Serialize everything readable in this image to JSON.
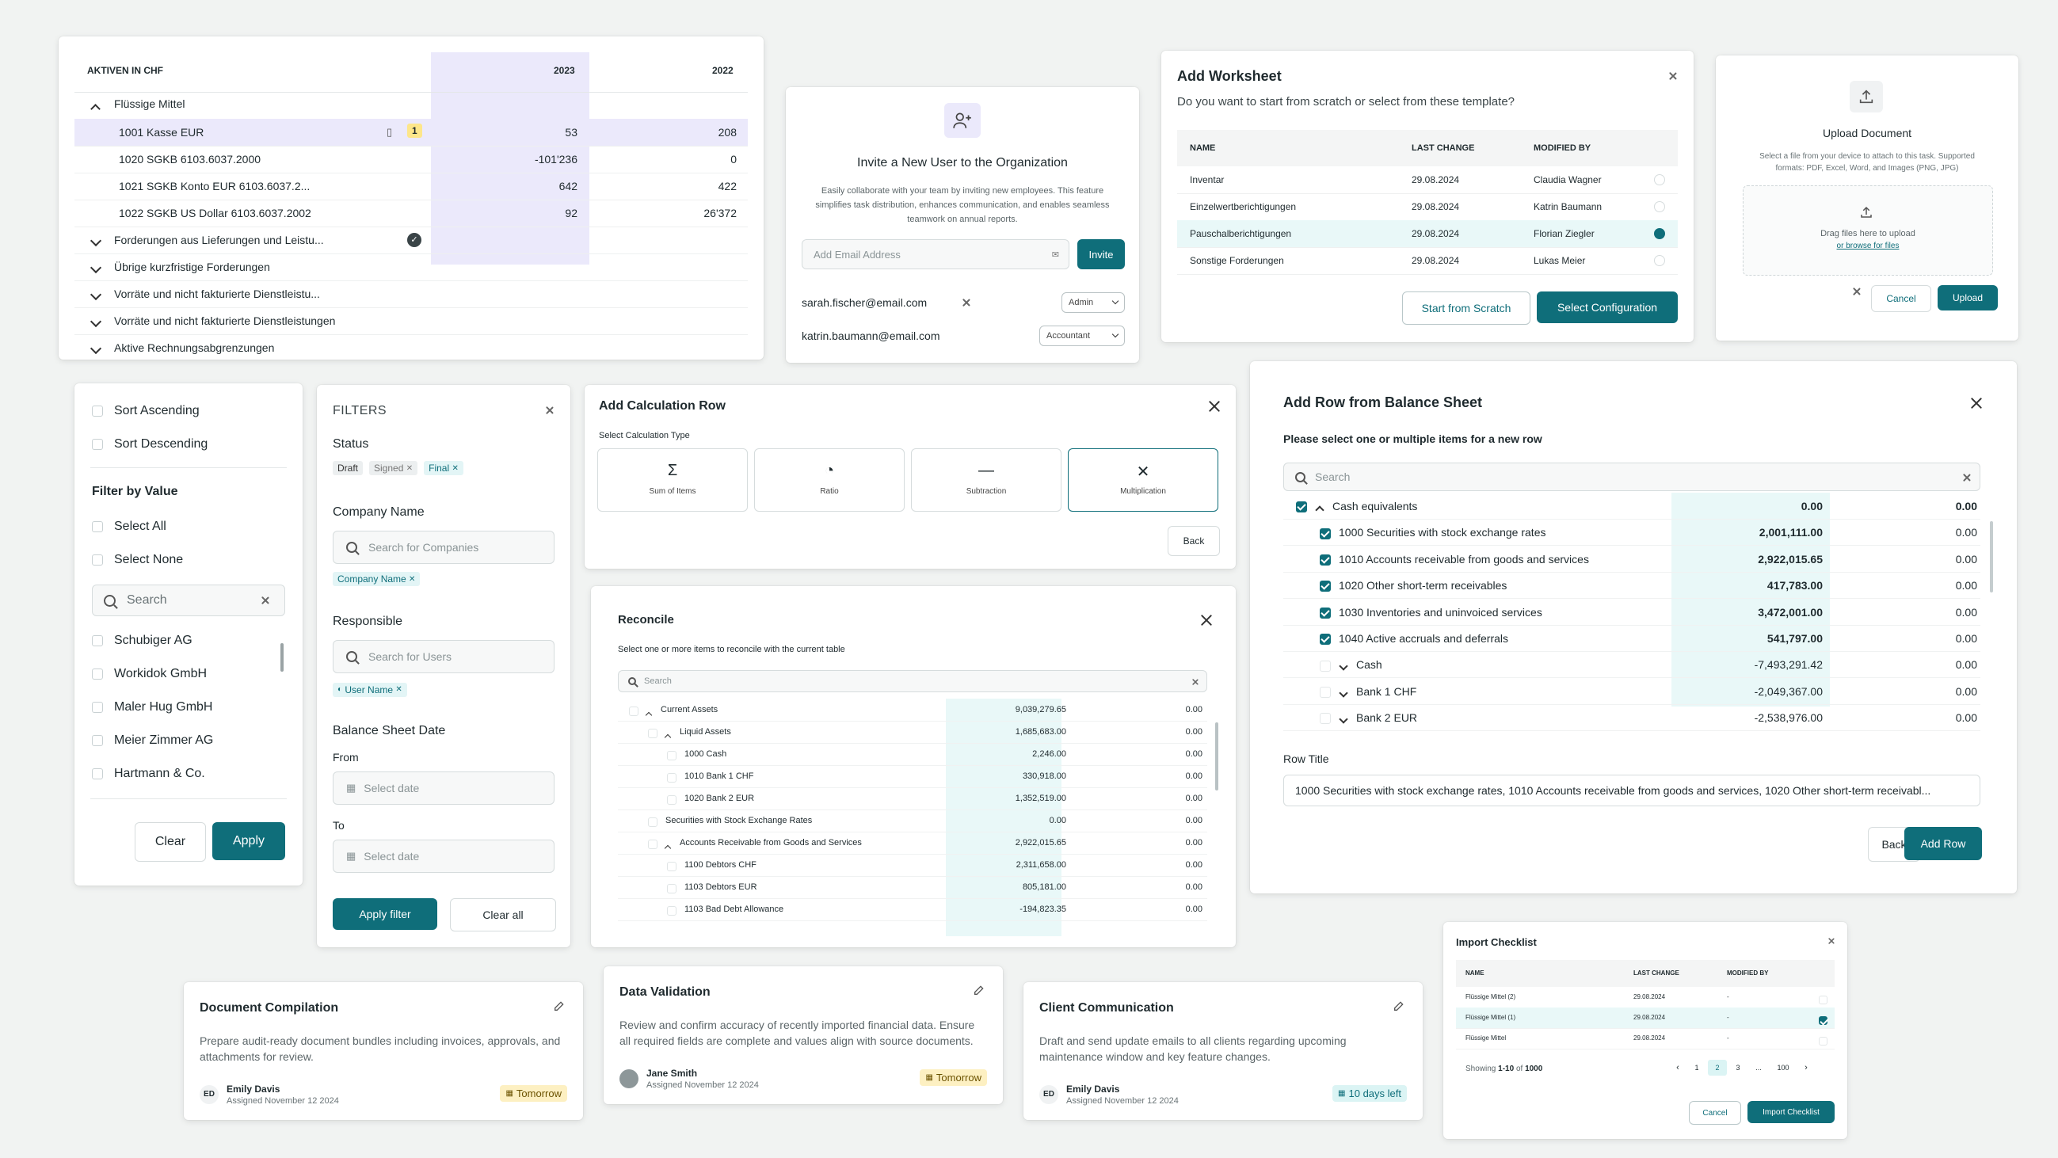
{
  "assets_table": {
    "header": "AKTIVEN IN CHF",
    "col_2023": "2023",
    "col_2022": "2022",
    "group1": "Flüssige Mittel",
    "rows": [
      {
        "name": "1001 Kasse EUR",
        "v2023": "53",
        "v2022": "208",
        "badge": "1"
      },
      {
        "name": "1020 SGKB 6103.6037.2000",
        "v2023": "-101'236",
        "v2022": "0"
      },
      {
        "name": "1021 SGKB Konto EUR  6103.6037.2...",
        "v2023": "642",
        "v2022": "422"
      },
      {
        "name": "1022 SGKB  US Dollar 6103.6037.2002",
        "v2023": "92",
        "v2022": "26'372"
      }
    ],
    "groups": [
      "Forderungen aus Lieferungen und Leistu...",
      "Übrige kurzfristige Forderungen",
      "Vorräte und nicht fakturierte Dienstleistu...",
      "Vorräte und nicht fakturierte Dienstleistungen",
      "Aktive Rechnungsabgrenzungen"
    ]
  },
  "invite": {
    "title": "Invite a New User to the Organization",
    "description": "Easily collaborate with your team by inviting new employees. This feature simplifies task distribution, enhances communication, and enables seamless teamwork on annual reports.",
    "placeholder": "Add Email Address",
    "invite_button": "Invite",
    "users": [
      {
        "email": "sarah.fischer@email.com",
        "role": "Admin"
      },
      {
        "email": "katrin.baumann@email.com",
        "role": "Accountant"
      }
    ]
  },
  "worksheet": {
    "title": "Add Worksheet",
    "subtitle": "Do you want to start from scratch or select from these template?",
    "columns": [
      "NAME",
      "LAST CHANGE",
      "MODIFIED BY"
    ],
    "rows": [
      {
        "name": "Inventar",
        "date": "29.08.2024",
        "by": "Claudia Wagner",
        "selected": false
      },
      {
        "name": "Einzelwertberichtigungen",
        "date": "29.08.2024",
        "by": "Katrin Baumann",
        "selected": false
      },
      {
        "name": "Pauschalberichtigungen",
        "date": "29.08.2024",
        "by": "Florian Ziegler",
        "selected": true
      },
      {
        "name": "Sonstige Forderungen",
        "date": "29.08.2024",
        "by": "Lukas Meier",
        "selected": false
      }
    ],
    "scratch_button": "Start from Scratch",
    "config_button": "Select Configuration"
  },
  "upload": {
    "title": "Upload Document",
    "description": "Select a file from your device to attach to this task. Supported formats: PDF, Excel, Word, and Images (PNG, JPG)",
    "drop_text": "Drag files here to upload",
    "browse_text": "or browse for files",
    "cancel": "Cancel",
    "upload": "Upload"
  },
  "sort_filter": {
    "sort_asc": "Sort Ascending",
    "sort_desc": "Sort Descending",
    "filter_title": "Filter by Value",
    "select_all": "Select All",
    "select_none": "Select None",
    "search_placeholder": "Search",
    "values": [
      "Schubiger AG",
      "Workidok GmbH",
      "Maler Hug GmbH",
      "Meier Zimmer AG",
      "Hartmann & Co."
    ],
    "clear": "Clear",
    "apply": "Apply"
  },
  "filters": {
    "title": "FILTERS",
    "status_label": "Status",
    "status_chips": [
      "Draft",
      "Signed",
      "Final"
    ],
    "company_label": "Company Name",
    "company_placeholder": "Search for Companies",
    "company_chip": "Company Name",
    "responsible_label": "Responsible",
    "responsible_placeholder": "Search for Users",
    "responsible_chip": "User Name",
    "date_label": "Balance Sheet Date",
    "from_label": "From",
    "to_label": "To",
    "date_placeholder": "Select date",
    "apply": "Apply filter",
    "clear": "Clear all"
  },
  "calc_row": {
    "title": "Add Calculation Row",
    "subtitle": "Select Calculation Type",
    "types": [
      {
        "glyph": "Σ",
        "label": "Sum of Items"
      },
      {
        "glyph": "◔",
        "label": "Ratio"
      },
      {
        "glyph": "—",
        "label": "Subtraction"
      },
      {
        "glyph": "✕",
        "label": "Multiplication"
      }
    ],
    "back": "Back"
  },
  "reconcile": {
    "title": "Reconcile",
    "subtitle": "Select one or more items to reconcile with the current table",
    "search": "Search",
    "rows": [
      {
        "name": "Current Assets",
        "v1": "9,039,279.65",
        "v2": "0.00",
        "indent": 0,
        "chev": true
      },
      {
        "name": "Liquid Assets",
        "v1": "1,685,683.00",
        "v2": "0.00",
        "indent": 1,
        "chev": true
      },
      {
        "name": "1000 Cash",
        "v1": "2,246.00",
        "v2": "0.00",
        "indent": 2,
        "chev": false
      },
      {
        "name": "1010 Bank 1 CHF",
        "v1": "330,918.00",
        "v2": "0.00",
        "indent": 2,
        "chev": false
      },
      {
        "name": "1020 Bank 2 EUR",
        "v1": "1,352,519.00",
        "v2": "0.00",
        "indent": 2,
        "chev": false
      },
      {
        "name": "Securities with Stock Exchange Rates",
        "v1": "0.00",
        "v2": "0.00",
        "indent": 1,
        "chev": false
      },
      {
        "name": "Accounts Receivable from Goods and Services",
        "v1": "2,922,015.65",
        "v2": "0.00",
        "indent": 1,
        "chev": true
      },
      {
        "name": "1100 Debtors CHF",
        "v1": "2,311,658.00",
        "v2": "0.00",
        "indent": 2,
        "chev": false
      },
      {
        "name": "1103 Debtors EUR",
        "v1": "805,181.00",
        "v2": "0.00",
        "indent": 2,
        "chev": false
      },
      {
        "name": "1103 Bad Debt Allowance",
        "v1": "-194,823.35",
        "v2": "0.00",
        "indent": 2,
        "chev": false
      }
    ]
  },
  "balance": {
    "title": "Add Row from Balance Sheet",
    "subtitle": "Please select one or multiple items for a new row",
    "search": "Search",
    "rows": [
      {
        "name": "Cash equivalents",
        "v1": "0.00",
        "v2": "0.00",
        "checked": true,
        "chev": "up",
        "indent": 0
      },
      {
        "name": "1000 Securities with stock exchange rates",
        "v1": "2,001,111.00",
        "v2": "0.00",
        "checked": true,
        "chev": "",
        "indent": 1
      },
      {
        "name": "1010 Accounts receivable from goods and services",
        "v1": "2,922,015.65",
        "v2": "0.00",
        "checked": true,
        "chev": "",
        "indent": 1
      },
      {
        "name": "1020 Other short-term receivables",
        "v1": "417,783.00",
        "v2": "0.00",
        "checked": true,
        "chev": "",
        "indent": 1
      },
      {
        "name": "1030 Inventories and uninvoiced services",
        "v1": "3,472,001.00",
        "v2": "0.00",
        "checked": true,
        "chev": "",
        "indent": 1
      },
      {
        "name": "1040 Active accruals and deferrals",
        "v1": "541,797.00",
        "v2": "0.00",
        "checked": true,
        "chev": "",
        "indent": 1
      },
      {
        "name": "Cash",
        "v1": "-7,493,291.42",
        "v2": "0.00",
        "checked": false,
        "chev": "down",
        "indent": 1
      },
      {
        "name": "Bank 1 CHF",
        "v1": "-2,049,367.00",
        "v2": "0.00",
        "checked": false,
        "chev": "down",
        "indent": 1
      },
      {
        "name": "Bank 2 EUR",
        "v1": "-2,538,976.00",
        "v2": "0.00",
        "checked": false,
        "chev": "down",
        "indent": 1
      }
    ],
    "row_title_label": "Row Title",
    "row_title_value": "1000 Securities with stock exchange rates, 1010 Accounts receivable from goods and services, 1020 Other short-term receivabl...",
    "back": "Back",
    "add": "Add Row"
  },
  "tasks": [
    {
      "title": "Document Compilation",
      "desc": "Prepare audit-ready document bundles including invoices, approvals, and attachments for review.",
      "user": "Emily Davis",
      "initials": "ED",
      "assigned": "Assigned November 12 2024",
      "due": "Tomorrow",
      "due_style": "yellow"
    },
    {
      "title": "Data Validation",
      "desc": "Review and confirm accuracy of recently imported financial data. Ensure all required fields are complete and values align with source documents.",
      "user": "Jane Smith",
      "initials": "",
      "assigned": "Assigned November 12 2024",
      "due": "Tomorrow",
      "due_style": "yellow"
    },
    {
      "title": "Client Communication",
      "desc": "Draft and send update emails to all clients regarding upcoming maintenance window and key feature changes.",
      "user": "Emily Davis",
      "initials": "ED",
      "assigned": "Assigned November 12 2024",
      "due": "10 days left",
      "due_style": "teal"
    }
  ],
  "import": {
    "title": "Import Checklist",
    "columns": [
      "NAME",
      "LAST CHANGE",
      "MODIFIED BY"
    ],
    "rows": [
      {
        "name": "Flüssige Mittel (2)",
        "date": "29.08.2024",
        "by": "-",
        "checked": false
      },
      {
        "name": "Flüssige Mittel (1)",
        "date": "29.08.2024",
        "by": "-",
        "checked": true
      },
      {
        "name": "Flüssige Mittel",
        "date": "29.08.2024",
        "by": "-",
        "checked": false
      }
    ],
    "showing_prefix": "Showing",
    "showing_range": "1-10",
    "showing_of": "of",
    "showing_total": "1000",
    "pages": [
      "1",
      "2",
      "3",
      "...",
      "100"
    ],
    "cancel": "Cancel",
    "import": "Import Checklist"
  }
}
